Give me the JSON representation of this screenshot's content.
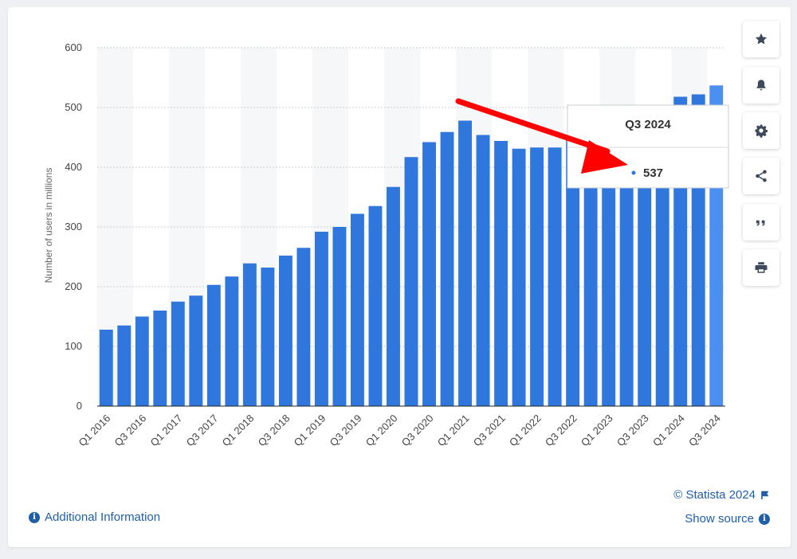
{
  "chart_data": {
    "type": "bar",
    "ylabel": "Number of users in millions",
    "ylim": [
      0,
      600
    ],
    "yticks": [
      0,
      100,
      200,
      300,
      400,
      500,
      600
    ],
    "grid": true,
    "categories": [
      "Q1 2016",
      "Q2 2016",
      "Q3 2016",
      "Q4 2016",
      "Q1 2017",
      "Q2 2017",
      "Q3 2017",
      "Q4 2017",
      "Q1 2018",
      "Q2 2018",
      "Q3 2018",
      "Q4 2018",
      "Q1 2019",
      "Q2 2019",
      "Q3 2019",
      "Q4 2019",
      "Q1 2020",
      "Q2 2020",
      "Q3 2020",
      "Q4 2020",
      "Q1 2021",
      "Q2 2021",
      "Q3 2021",
      "Q4 2021",
      "Q1 2022",
      "Q2 2022",
      "Q3 2022",
      "Q4 2022",
      "Q1 2023",
      "Q2 2023",
      "Q3 2023",
      "Q4 2023",
      "Q1 2024",
      "Q2 2024",
      "Q3 2024"
    ],
    "values": [
      128,
      135,
      150,
      160,
      175,
      185,
      203,
      217,
      239,
      232,
      252,
      265,
      292,
      300,
      322,
      335,
      367,
      417,
      442,
      459,
      478,
      454,
      444,
      431,
      433,
      433,
      445,
      450,
      463,
      465,
      482,
      498,
      518,
      522,
      537
    ],
    "tick_labels": [
      "Q1 2016",
      "Q3 2016",
      "Q1 2017",
      "Q3 2017",
      "Q1 2018",
      "Q3 2018",
      "Q1 2019",
      "Q3 2019",
      "Q1 2020",
      "Q3 2020",
      "Q1 2021",
      "Q3 2021",
      "Q1 2022",
      "Q3 2022",
      "Q1 2023",
      "Q3 2023",
      "Q1 2024",
      "Q3 2024"
    ],
    "bar_color": "#2f77dd",
    "highlight_color": "#4b8ff0",
    "tooltip": {
      "category": "Q3 2024",
      "value": "537"
    },
    "annotation_arrow_color": "#ff0000"
  },
  "sidebar": {
    "buttons": [
      "star-icon",
      "bell-icon",
      "gear-icon",
      "share-icon",
      "quote-icon",
      "print-icon"
    ]
  },
  "footer": {
    "additional_info": "Additional Information",
    "copyright": "© Statista 2024",
    "show_source": "Show source"
  }
}
